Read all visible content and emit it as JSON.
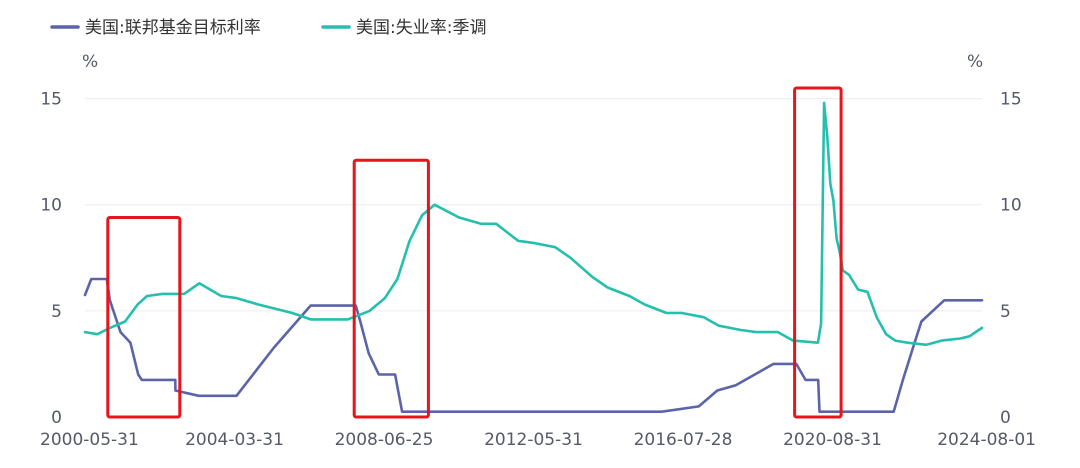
{
  "chart_data": {
    "type": "line",
    "title": "",
    "xlabel": "",
    "x_tick_labels": [
      "2000-05-31",
      "2004-03-31",
      "2008-06-25",
      "2012-05-31",
      "2016-07-28",
      "2020-08-31",
      "2024-08-01"
    ],
    "x_range": [
      "2000-05-31",
      "2024-08-01"
    ],
    "y_left": {
      "unit": "%",
      "ticks": [
        0,
        5,
        10,
        15
      ],
      "range": [
        0,
        15.5
      ]
    },
    "y_right": {
      "unit": "%",
      "ticks": [
        0,
        5,
        10,
        15
      ],
      "range": [
        0,
        15.5
      ]
    },
    "grid": true,
    "legend_position": "top-left",
    "series": [
      {
        "name": "美国:联邦基金目标利率",
        "color": "#5b64a8",
        "axis": "left",
        "points": [
          [
            "2000-05-31",
            5.75
          ],
          [
            "2000-08-01",
            6.5
          ],
          [
            "2001-01-01",
            6.5
          ],
          [
            "2001-01-31",
            5.5
          ],
          [
            "2001-05-15",
            4.0
          ],
          [
            "2001-08-21",
            3.5
          ],
          [
            "2001-11-06",
            2.0
          ],
          [
            "2001-12-11",
            1.75
          ],
          [
            "2002-11-06",
            1.75
          ],
          [
            "2002-11-07",
            1.25
          ],
          [
            "2003-06-25",
            1.0
          ],
          [
            "2004-06-30",
            1.0
          ],
          [
            "2005-06-30",
            3.25
          ],
          [
            "2006-06-29",
            5.25
          ],
          [
            "2007-09-17",
            5.25
          ],
          [
            "2007-10-31",
            4.5
          ],
          [
            "2008-01-22",
            3.0
          ],
          [
            "2008-04-30",
            2.0
          ],
          [
            "2008-10-08",
            2.0
          ],
          [
            "2008-12-16",
            0.25
          ],
          [
            "2015-12-16",
            0.25
          ],
          [
            "2016-12-14",
            0.5
          ],
          [
            "2017-06-14",
            1.25
          ],
          [
            "2017-12-13",
            1.5
          ],
          [
            "2018-12-19",
            2.5
          ],
          [
            "2019-07-31",
            2.5
          ],
          [
            "2019-10-30",
            1.75
          ],
          [
            "2020-03-03",
            1.75
          ],
          [
            "2020-03-16",
            0.25
          ],
          [
            "2022-03-16",
            0.25
          ],
          [
            "2022-06-15",
            1.75
          ],
          [
            "2022-09-21",
            3.25
          ],
          [
            "2022-12-14",
            4.5
          ],
          [
            "2023-07-26",
            5.5
          ],
          [
            "2024-08-01",
            5.5
          ]
        ]
      },
      {
        "name": "美国:失业率:季调",
        "color": "#26bfae",
        "axis": "right",
        "points": [
          [
            "2000-05-31",
            4.0
          ],
          [
            "2000-09-30",
            3.9
          ],
          [
            "2001-01-31",
            4.2
          ],
          [
            "2001-06-30",
            4.5
          ],
          [
            "2001-10-31",
            5.3
          ],
          [
            "2002-01-31",
            5.7
          ],
          [
            "2002-06-30",
            5.8
          ],
          [
            "2003-01-31",
            5.8
          ],
          [
            "2003-06-30",
            6.3
          ],
          [
            "2004-01-31",
            5.7
          ],
          [
            "2004-06-30",
            5.6
          ],
          [
            "2005-01-31",
            5.3
          ],
          [
            "2005-12-31",
            4.9
          ],
          [
            "2006-06-30",
            4.6
          ],
          [
            "2007-01-31",
            4.6
          ],
          [
            "2007-06-30",
            4.6
          ],
          [
            "2008-01-31",
            5.0
          ],
          [
            "2008-06-30",
            5.6
          ],
          [
            "2008-10-31",
            6.5
          ],
          [
            "2009-02-28",
            8.3
          ],
          [
            "2009-06-30",
            9.5
          ],
          [
            "2009-10-31",
            10.0
          ],
          [
            "2010-06-30",
            9.4
          ],
          [
            "2011-01-31",
            9.1
          ],
          [
            "2011-06-30",
            9.1
          ],
          [
            "2012-01-31",
            8.3
          ],
          [
            "2012-06-30",
            8.2
          ],
          [
            "2013-01-31",
            8.0
          ],
          [
            "2013-06-30",
            7.5
          ],
          [
            "2014-01-31",
            6.6
          ],
          [
            "2014-06-30",
            6.1
          ],
          [
            "2015-01-31",
            5.7
          ],
          [
            "2015-06-30",
            5.3
          ],
          [
            "2016-01-31",
            4.9
          ],
          [
            "2016-06-30",
            4.9
          ],
          [
            "2017-01-31",
            4.7
          ],
          [
            "2017-06-30",
            4.3
          ],
          [
            "2018-01-31",
            4.1
          ],
          [
            "2018-06-30",
            4.0
          ],
          [
            "2019-01-31",
            4.0
          ],
          [
            "2019-06-30",
            3.6
          ],
          [
            "2020-02-29",
            3.5
          ],
          [
            "2020-03-31",
            4.4
          ],
          [
            "2020-04-30",
            14.8
          ],
          [
            "2020-05-31",
            13.2
          ],
          [
            "2020-06-30",
            11.0
          ],
          [
            "2020-07-31",
            10.2
          ],
          [
            "2020-08-31",
            8.4
          ],
          [
            "2020-09-30",
            7.8
          ],
          [
            "2020-10-31",
            6.9
          ],
          [
            "2020-12-31",
            6.7
          ],
          [
            "2021-03-31",
            6.0
          ],
          [
            "2021-06-30",
            5.9
          ],
          [
            "2021-09-30",
            4.7
          ],
          [
            "2021-12-31",
            3.9
          ],
          [
            "2022-03-31",
            3.6
          ],
          [
            "2022-07-31",
            3.5
          ],
          [
            "2023-01-31",
            3.4
          ],
          [
            "2023-06-30",
            3.6
          ],
          [
            "2023-12-31",
            3.7
          ],
          [
            "2024-03-31",
            3.8
          ],
          [
            "2024-06-30",
            4.1
          ],
          [
            "2024-08-01",
            4.2
          ]
        ]
      }
    ],
    "annotations": [
      {
        "type": "highlight-box",
        "color": "#e8141b",
        "x_range": [
          "2001-01-10",
          "2002-12-20"
        ],
        "y_range": [
          0,
          9.4
        ]
      },
      {
        "type": "highlight-box",
        "color": "#e8141b",
        "x_range": [
          "2007-09-01",
          "2009-08-31"
        ],
        "y_range": [
          0,
          12.1
        ]
      },
      {
        "type": "highlight-box",
        "color": "#e8141b",
        "x_range": [
          "2019-07-15",
          "2020-10-15"
        ],
        "y_range": [
          0,
          15.5
        ]
      }
    ]
  }
}
